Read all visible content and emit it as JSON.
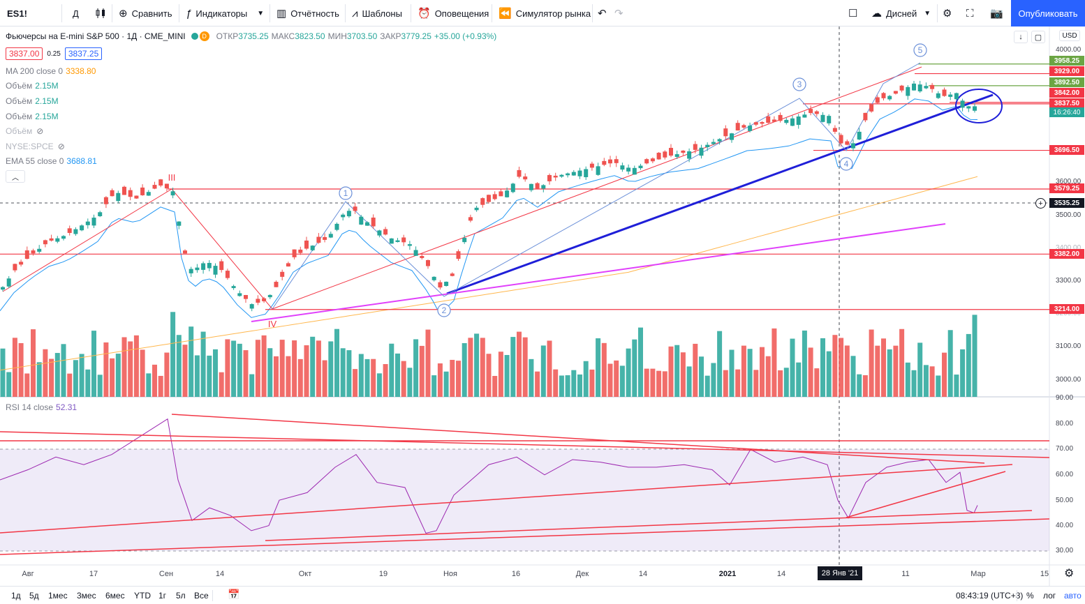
{
  "toolbar": {
    "symbol": "ES1!",
    "interval": "Д",
    "compare": "Сравнить",
    "indicators": "Индикаторы",
    "reports": "Отчётность",
    "templates": "Шаблоны",
    "alerts": "Оповещения",
    "replay": "Симулятор рынка",
    "layout_name": "Дисней",
    "publish": "Опубликовать"
  },
  "legend": {
    "title": "Фьючерсы на E-mini S&P 500 · 1Д · CME_MINI",
    "badge": "D",
    "open_label": "ОТКР",
    "open": "3735.25",
    "high_label": "МАКС",
    "high": "3823.50",
    "low_label": "МИН",
    "low": "3703.50",
    "close_label": "ЗАКР",
    "close": "3779.25",
    "change": "+35.00 (+0.93%)",
    "bid": "3837.00",
    "spread": "0.25",
    "ask": "3837.25",
    "ma": {
      "label": "MA 200 close 0",
      "value": "3338.80"
    },
    "vol1": {
      "label": "Объём",
      "value": "2.15M"
    },
    "vol2": {
      "label": "Объём",
      "value": "2.15M"
    },
    "vol3": {
      "label": "Объём",
      "value": "2.15M"
    },
    "vol4": {
      "label": "Объём"
    },
    "spce": {
      "label": "NYSE:SPCE"
    },
    "ema": {
      "label": "EMA 55 close 0",
      "value": "3688.81"
    },
    "rsi": {
      "label": "RSI 14 close",
      "value": "52.31"
    }
  },
  "price_axis": {
    "currency": "USD",
    "ticks": [
      "4000.00",
      "3600.00",
      "3500.00",
      "3400.00",
      "3300.00",
      "3200.00",
      "3100.00",
      "3000.00",
      "90.00"
    ],
    "labels": [
      {
        "value": "3958.25",
        "color": "#6ba543"
      },
      {
        "value": "3929.00",
        "color": "#f23645"
      },
      {
        "value": "3892.50",
        "color": "#6ba543"
      },
      {
        "value": "3842.00",
        "color": "#f23645"
      },
      {
        "value": "3837.50",
        "color": "#f23645"
      },
      {
        "value": "16:26:40",
        "color": "#26a69a"
      },
      {
        "value": "3696.50",
        "color": "#f23645"
      },
      {
        "value": "3579.25",
        "color": "#f23645"
      },
      {
        "value": "3535.25",
        "color": "#131722"
      },
      {
        "value": "3382.00",
        "color": "#f23645"
      },
      {
        "value": "3214.00",
        "color": "#f23645"
      }
    ]
  },
  "rsi_axis": {
    "ticks": [
      "80.00",
      "70.00",
      "60.00",
      "50.00",
      "40.00",
      "30.00"
    ]
  },
  "wave_labels": {
    "top_left": "III",
    "bottom_left": "IV",
    "w1": "1",
    "w2": "2",
    "w3": "3",
    "w4": "4",
    "w5": "5"
  },
  "time_axis": {
    "ticks": [
      "Авг",
      "17",
      "Сен",
      "14",
      "Окт",
      "19",
      "Ноя",
      "16",
      "Дек",
      "14",
      "2021",
      "14",
      "11",
      "Мар",
      "15"
    ],
    "cursor_date": "28 Янв '21"
  },
  "bottombar": {
    "ranges": [
      "1д",
      "5д",
      "1мес",
      "3мес",
      "6мес",
      "YTD",
      "1г",
      "5л",
      "Все"
    ],
    "clock": "08:43:19 (UTC+3)",
    "percent": "%",
    "log": "лог",
    "auto": "авто"
  },
  "colors": {
    "up": "#26a69a",
    "down": "#ef5350",
    "accent": "#2962ff"
  }
}
